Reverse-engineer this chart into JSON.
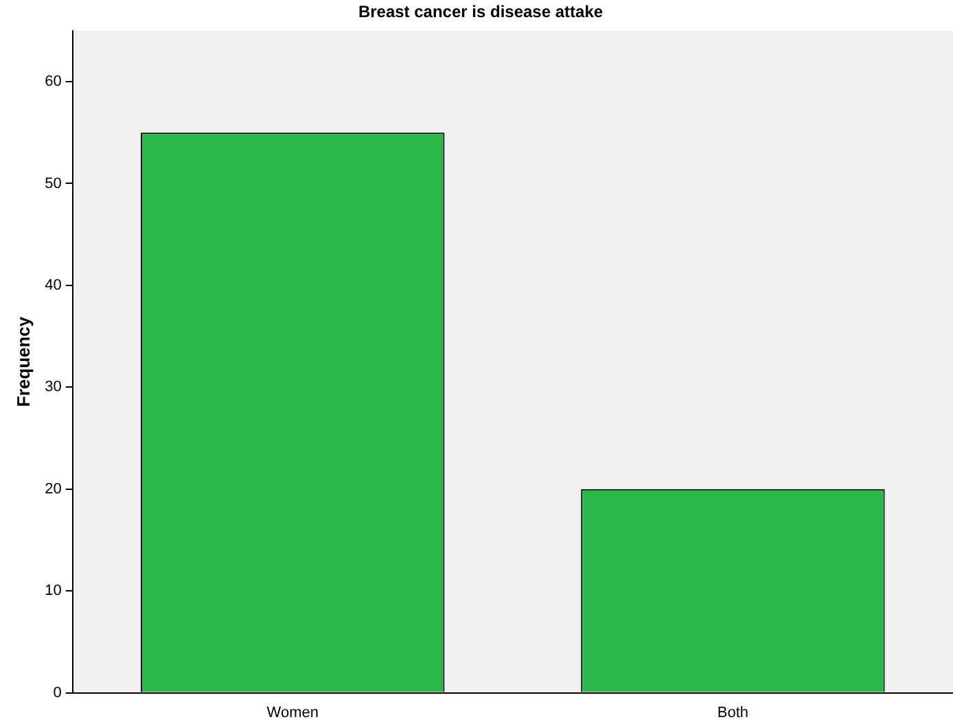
{
  "chart_data": {
    "type": "bar",
    "title": "Breast cancer is disease attake",
    "ylabel": "Frequency",
    "categories": [
      "Women",
      "Both"
    ],
    "values": [
      55,
      20
    ],
    "color": "#2db84a",
    "ylim": [
      0,
      65
    ],
    "yticks": [
      0,
      10,
      20,
      30,
      40,
      50,
      60
    ],
    "grid": false,
    "legend": false
  }
}
